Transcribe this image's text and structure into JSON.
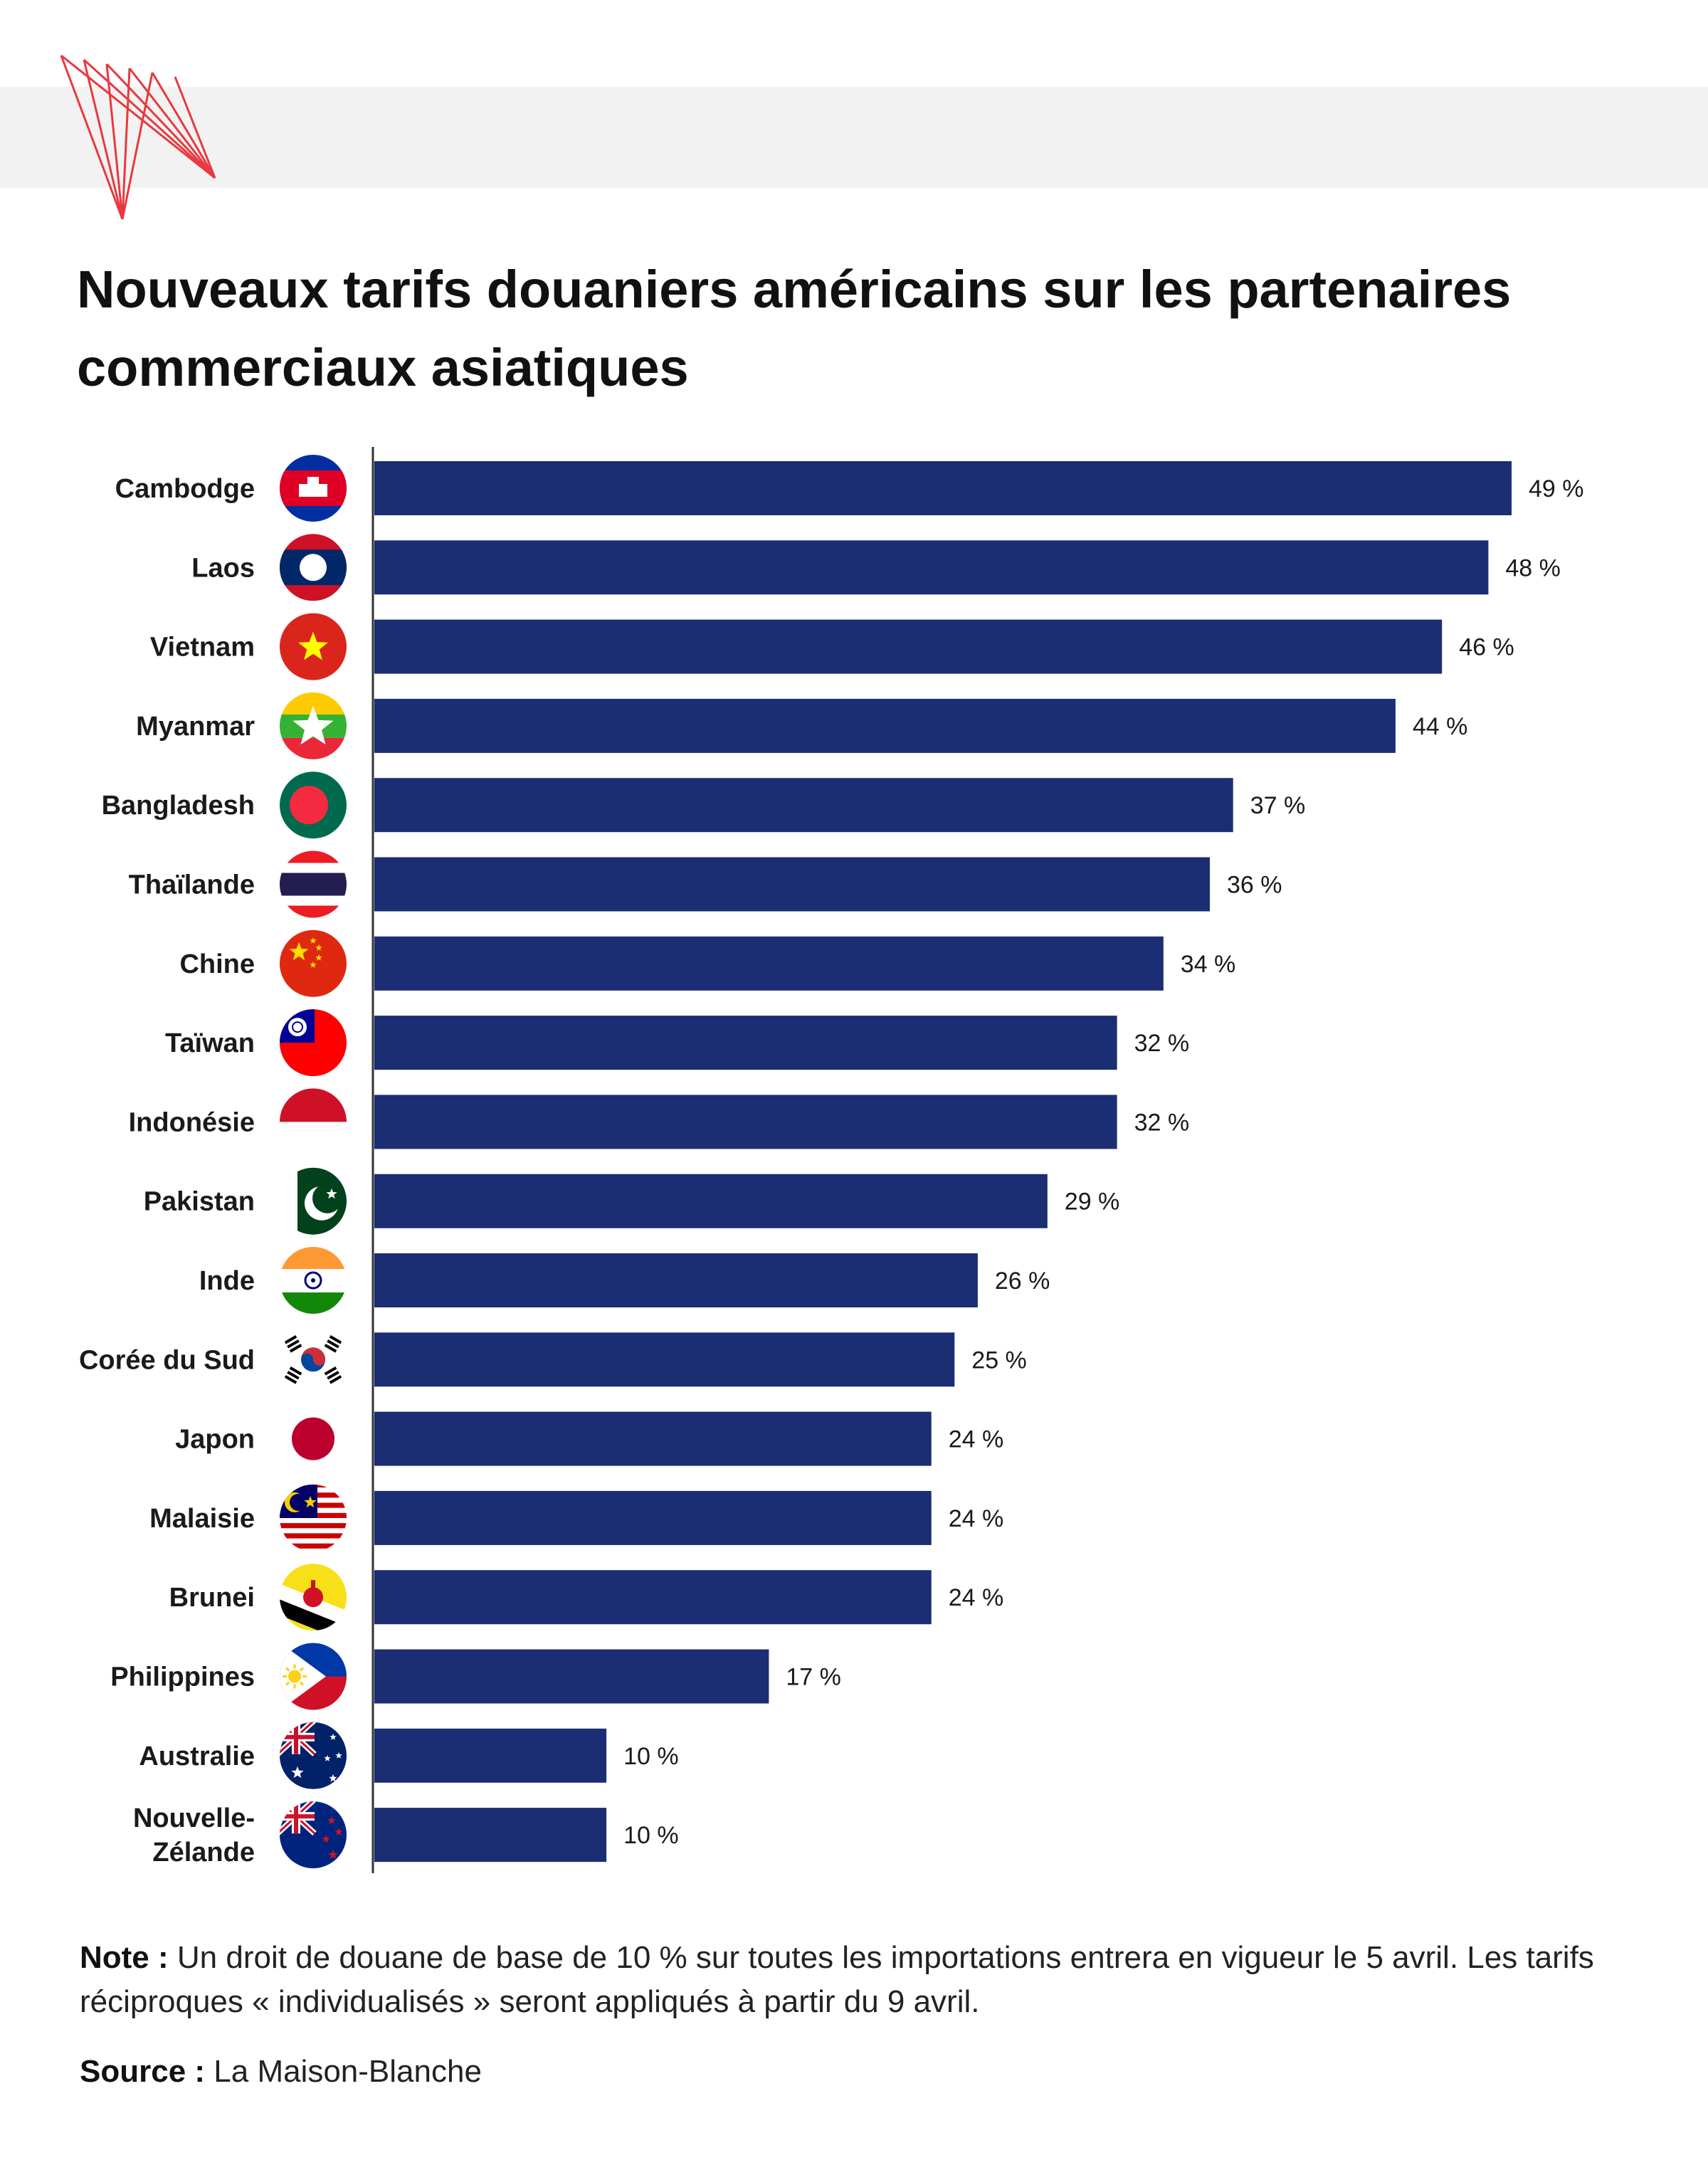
{
  "header": {
    "title": "Nouveaux tarifs douaniers américains sur les partenaires commerciaux asiatiques"
  },
  "colors": {
    "bar": "#1b2d73",
    "logo": "#e8393f",
    "band": "#f2f2f2",
    "axis": "#333333"
  },
  "chart_data": {
    "type": "bar",
    "orientation": "horizontal",
    "title": "Nouveaux tarifs douaniers américains sur les partenaires commerciaux asiatiques",
    "xlabel": "",
    "ylabel": "",
    "xlim": [
      0,
      49
    ],
    "unit": "%",
    "categories": [
      "Cambodge",
      "Laos",
      "Vietnam",
      "Myanmar",
      "Bangladesh",
      "Thaïlande",
      "Chine",
      "Taïwan",
      "Indonésie",
      "Pakistan",
      "Inde",
      "Corée du Sud",
      "Japon",
      "Malaisie",
      "Brunei",
      "Philippines",
      "Australie",
      "Nouvelle-Zélande"
    ],
    "category_lines": [
      [
        "Cambodge"
      ],
      [
        "Laos"
      ],
      [
        "Vietnam"
      ],
      [
        "Myanmar"
      ],
      [
        "Bangladesh"
      ],
      [
        "Thaïlande"
      ],
      [
        "Chine"
      ],
      [
        "Taïwan"
      ],
      [
        "Indonésie"
      ],
      [
        "Pakistan"
      ],
      [
        "Inde"
      ],
      [
        "Corée du Sud"
      ],
      [
        "Japon"
      ],
      [
        "Malaisie"
      ],
      [
        "Brunei"
      ],
      [
        "Philippines"
      ],
      [
        "Australie"
      ],
      [
        "Nouvelle-",
        "Zélande"
      ]
    ],
    "values": [
      49,
      48,
      46,
      44,
      37,
      36,
      34,
      32,
      32,
      29,
      26,
      25,
      24,
      24,
      24,
      17,
      10,
      10
    ],
    "value_labels": [
      "49 %",
      "48 %",
      "46 %",
      "44 %",
      "37 %",
      "36 %",
      "34 %",
      "32 %",
      "32 %",
      "29 %",
      "26 %",
      "25 %",
      "24 %",
      "24 %",
      "24 %",
      "17 %",
      "10 %",
      "10 %"
    ],
    "flag_icons": [
      "flag-cambodia-icon",
      "flag-laos-icon",
      "flag-vietnam-icon",
      "flag-myanmar-icon",
      "flag-bangladesh-icon",
      "flag-thailand-icon",
      "flag-china-icon",
      "flag-taiwan-icon",
      "flag-indonesia-icon",
      "flag-pakistan-icon",
      "flag-india-icon",
      "flag-south-korea-icon",
      "flag-japan-icon",
      "flag-malaysia-icon",
      "flag-brunei-icon",
      "flag-philippines-icon",
      "flag-australia-icon",
      "flag-new-zealand-icon"
    ],
    "grid": false,
    "legend": "none"
  },
  "footer": {
    "note_label": "Note :",
    "note_text": " Un droit de douane de base de 10 % sur toutes les importations entrera en vigueur le 5 avril. Les tarifs réciproques « individualisés » seront appliqués à partir du 9 avril.",
    "source_label": "Source :",
    "source_text": " La Maison-Blanche"
  }
}
